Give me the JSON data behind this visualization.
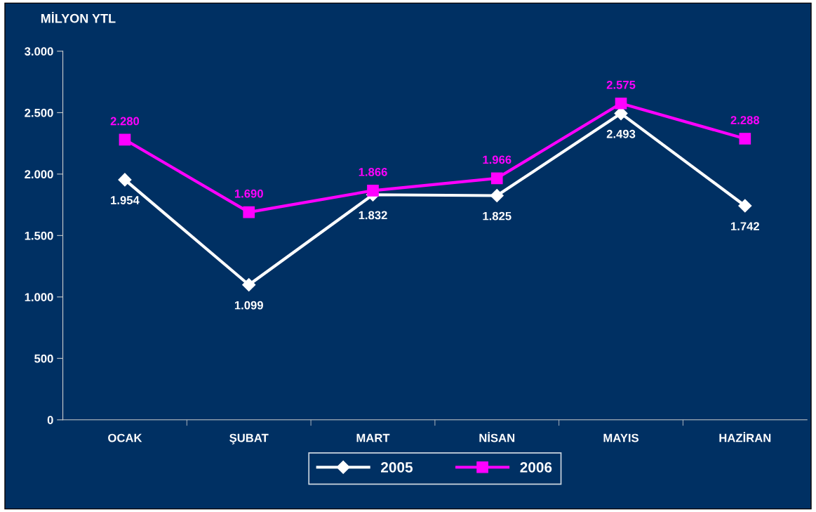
{
  "chart_data": {
    "type": "line",
    "ylabel": "MİLYON YTL",
    "categories": [
      "OCAK",
      "ŞUBAT",
      "MART",
      "NİSAN",
      "MAYIS",
      "HAZİRAN"
    ],
    "series": [
      {
        "name": "2005",
        "color": "#ffffff",
        "marker": "diamond",
        "values": [
          1954,
          1099,
          1832,
          1825,
          2493,
          1742
        ],
        "value_labels": [
          "1.954",
          "1.099",
          "1.832",
          "1.825",
          "2.493",
          "1.742"
        ]
      },
      {
        "name": "2006",
        "color": "#ff00ff",
        "marker": "square",
        "values": [
          2280,
          1690,
          1866,
          1966,
          2575,
          2288
        ],
        "value_labels": [
          "2.280",
          "1.690",
          "1.866",
          "1.966",
          "2.575",
          "2.288"
        ]
      }
    ],
    "ylim": [
      0,
      3000
    ],
    "yticks": [
      {
        "value": 0,
        "label": "0"
      },
      {
        "value": 500,
        "label": "500"
      },
      {
        "value": 1000,
        "label": "1.000"
      },
      {
        "value": 1500,
        "label": "1.500"
      },
      {
        "value": 2000,
        "label": "2.000"
      },
      {
        "value": 2500,
        "label": "2.500"
      },
      {
        "value": 3000,
        "label": "3.000"
      }
    ],
    "grid": false,
    "legend": "bottom",
    "line_style": "solid"
  }
}
